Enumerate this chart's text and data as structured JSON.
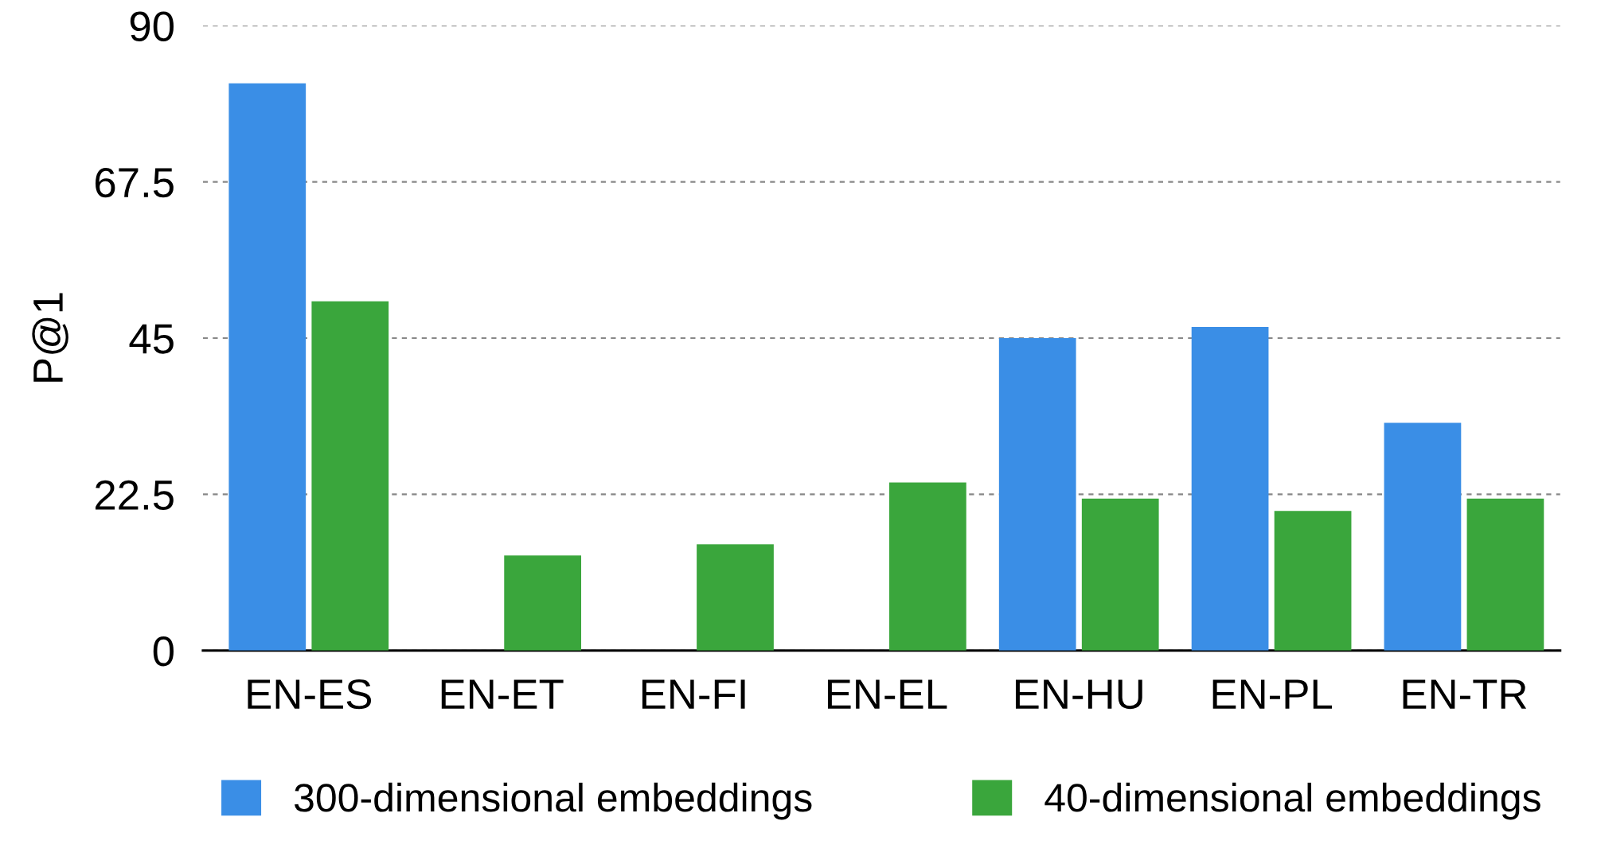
{
  "chart_data": {
    "type": "bar",
    "ylabel": "P@1",
    "categories": [
      "EN-ES",
      "EN-ET",
      "EN-FI",
      "EN-EL",
      "EN-HU",
      "EN-PL",
      "EN-TR"
    ],
    "series": [
      {
        "name": "300-dimensional embeddings",
        "color": "#3a8ee6",
        "values": [
          81.7,
          0,
          0,
          0,
          45.0,
          46.6,
          32.8
        ]
      },
      {
        "name": "40-dimensional embeddings",
        "color": "#3aa63c",
        "values": [
          50.3,
          13.7,
          15.3,
          24.2,
          21.9,
          20.1,
          21.9
        ]
      }
    ],
    "ylim": [
      0,
      90
    ],
    "yticks": [
      0,
      22.5,
      45,
      67.5,
      90
    ],
    "grid": "y",
    "legend": "bottom"
  }
}
